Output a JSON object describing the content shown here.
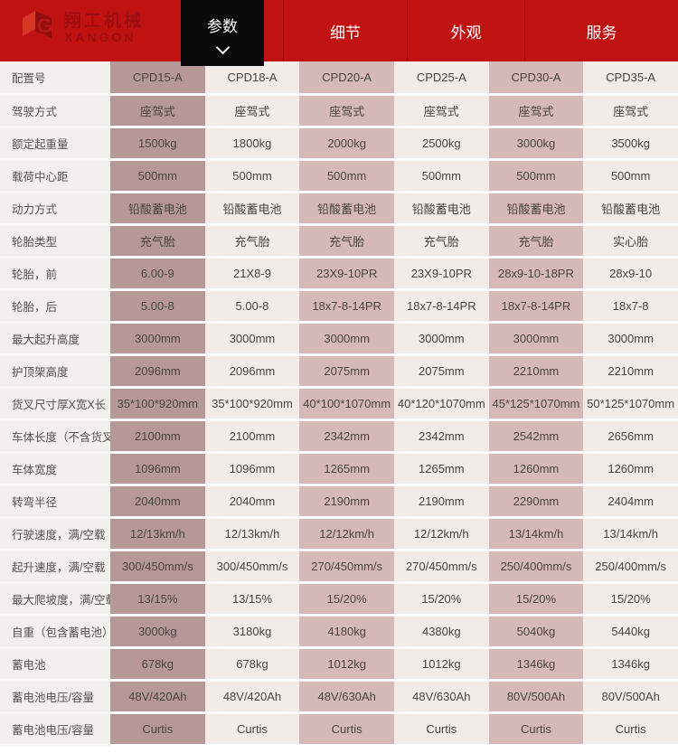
{
  "colors": {
    "banner_red": "#c11212",
    "active_tab_black": "#0a0a0a",
    "column_dark_mauve": "#b69898",
    "column_pink": "#d5b8b8",
    "column_light": "#f1ece8",
    "label_column_bg": "#f2f0ee",
    "cell_text": "#4a4442"
  },
  "header": {
    "logo": {
      "cn": "翔工机械",
      "en": "XANGON"
    },
    "tabs": [
      {
        "label": "参数",
        "active": true
      },
      {
        "label": "细节",
        "active": false
      },
      {
        "label": "外观",
        "active": false
      },
      {
        "label": "服务",
        "active": false
      }
    ],
    "icons": {
      "active_tab_chevron": "chevron-down"
    }
  },
  "table": {
    "header_label": "配置号",
    "columns": [
      "CPD15-A",
      "CPD18-A",
      "CPD20-A",
      "CPD25-A",
      "CPD30-A",
      "CPD35-A"
    ],
    "rows": [
      {
        "label": "驾驶方式",
        "values": [
          "座驾式",
          "座驾式",
          "座驾式",
          "座驾式",
          "座驾式",
          "座驾式"
        ]
      },
      {
        "label": "额定起重量",
        "values": [
          "1500kg",
          "1800kg",
          "2000kg",
          "2500kg",
          "3000kg",
          "3500kg"
        ]
      },
      {
        "label": "载荷中心距",
        "values": [
          "500mm",
          "500mm",
          "500mm",
          "500mm",
          "500mm",
          "500mm"
        ]
      },
      {
        "label": "动力方式",
        "values": [
          "铅酸蓄电池",
          "铅酸蓄电池",
          "铅酸蓄电池",
          "铅酸蓄电池",
          "铅酸蓄电池",
          "铅酸蓄电池"
        ]
      },
      {
        "label": "轮胎类型",
        "values": [
          "充气胎",
          "充气胎",
          "充气胎",
          "充气胎",
          "充气胎",
          "实心胎"
        ]
      },
      {
        "label": "轮胎，前",
        "values": [
          "6.00-9",
          "21X8-9",
          "23X9-10PR",
          "23X9-10PR",
          "28x9-10-18PR",
          "28x9-10"
        ]
      },
      {
        "label": "轮胎，后",
        "values": [
          "5.00-8",
          "5.00-8",
          "18x7-8-14PR",
          "18x7-8-14PR",
          "18x7-8-14PR",
          "18x7-8"
        ]
      },
      {
        "label": "最大起升高度",
        "values": [
          "3000mm",
          "3000mm",
          "3000mm",
          "3000mm",
          "3000mm",
          "3000mm"
        ]
      },
      {
        "label": "护顶架高度",
        "values": [
          "2096mm",
          "2096mm",
          "2075mm",
          "2075mm",
          "2210mm",
          "2210mm"
        ]
      },
      {
        "label": "货叉尺寸厚X宽X长",
        "values": [
          "35*100*920mm",
          "35*100*920mm",
          "40*100*1070mm",
          "40*120*1070mm",
          "45*125*1070mm",
          "50*125*1070mm"
        ]
      },
      {
        "label": "车体长度（不含货叉）",
        "values": [
          "2100mm",
          "2100mm",
          "2342mm",
          "2342mm",
          "2542mm",
          "2656mm"
        ]
      },
      {
        "label": "车体宽度",
        "values": [
          "1096mm",
          "1096mm",
          "1265mm",
          "1265mm",
          "1260mm",
          "1260mm"
        ]
      },
      {
        "label": "转弯半径",
        "values": [
          "2040mm",
          "2040mm",
          "2190mm",
          "2190mm",
          "2290mm",
          "2404mm"
        ]
      },
      {
        "label": "行驶速度，满/空载",
        "values": [
          "12/13km/h",
          "12/13km/h",
          "12/12km/h",
          "12/12km/h",
          "13/14km/h",
          "13/14km/h"
        ]
      },
      {
        "label": "起升速度，满/空载",
        "values": [
          "300/450mm/s",
          "300/450mm/s",
          "270/450mm/s",
          "270/450mm/s",
          "250/400mm/s",
          "250/400mm/s"
        ]
      },
      {
        "label": "最大爬坡度，满/空载",
        "values": [
          "13/15%",
          "13/15%",
          "15/20%",
          "15/20%",
          "15/20%",
          "15/20%"
        ]
      },
      {
        "label": "自重（包含蓄电池）",
        "values": [
          "3000kg",
          "3180kg",
          "4180kg",
          "4380kg",
          "5040kg",
          "5440kg"
        ]
      },
      {
        "label": "蓄电池",
        "values": [
          "678kg",
          "678kg",
          "1012kg",
          "1012kg",
          "1346kg",
          "1346kg"
        ]
      },
      {
        "label": "蓄电池电压/容量",
        "values": [
          "48V/420Ah",
          "48V/420Ah",
          "48V/630Ah",
          "48V/630Ah",
          "80V/500Ah",
          "80V/500Ah"
        ]
      },
      {
        "label": "蓄电池电压/容量",
        "values": [
          "Curtis",
          "Curtis",
          "Curtis",
          "Curtis",
          "Curtis",
          "Curtis"
        ]
      }
    ]
  }
}
